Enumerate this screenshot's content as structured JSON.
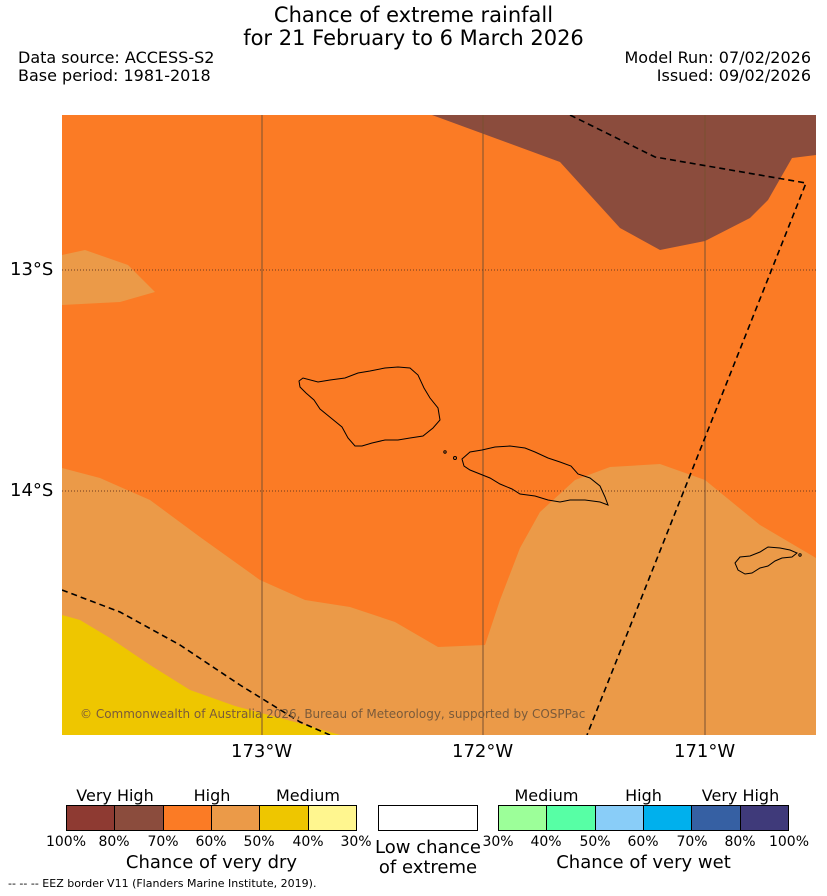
{
  "title": {
    "line1": "Chance of extreme rainfall",
    "line2": "for 21 February to 6 March 2026"
  },
  "meta": {
    "data_source": "Data source: ACCESS-S2",
    "base_period": "Base period: 1981-2018",
    "model_run": "Model Run: 07/02/2026",
    "issued": "Issued: 09/02/2026"
  },
  "map": {
    "lat_labels": [
      "13°S",
      "14°S"
    ],
    "lon_labels": [
      "173°W",
      "172°W",
      "171°W"
    ],
    "copyright": "© Commonwealth of Australia 2026, Bureau of Meteorology, supported by COSPPac",
    "colors": {
      "high_dry": "#fb7b25",
      "very_high_dry_70": "#8b4c3d",
      "medium_high_dry_50": "#eb9a48",
      "medium_dry_40": "#eec600",
      "eez_border": "#000000"
    }
  },
  "legend": {
    "dry": {
      "title": "Chance of very dry",
      "categories": [
        "Very High",
        "High",
        "Medium"
      ],
      "ticks": [
        "100%",
        "80%",
        "70%",
        "60%",
        "50%",
        "40%",
        "30%"
      ],
      "colors": [
        "#8e3a32",
        "#8b4c3d",
        "#fb7b25",
        "#eb9a48",
        "#eec600",
        "#fff68f"
      ]
    },
    "low": {
      "line1": "Low chance",
      "line2": "of extreme"
    },
    "wet": {
      "title": "Chance of very wet",
      "categories": [
        "Medium",
        "High",
        "Very High"
      ],
      "ticks": [
        "30%",
        "40%",
        "50%",
        "60%",
        "70%",
        "80%",
        "100%"
      ],
      "colors": [
        "#9cff99",
        "#57ffa5",
        "#89cdf8",
        "#00b0ed",
        "#3660a3",
        "#3f3a7a"
      ]
    }
  },
  "footnote": "--  --  -- EEZ border V11 (Flanders Marine Institute, 2019)."
}
